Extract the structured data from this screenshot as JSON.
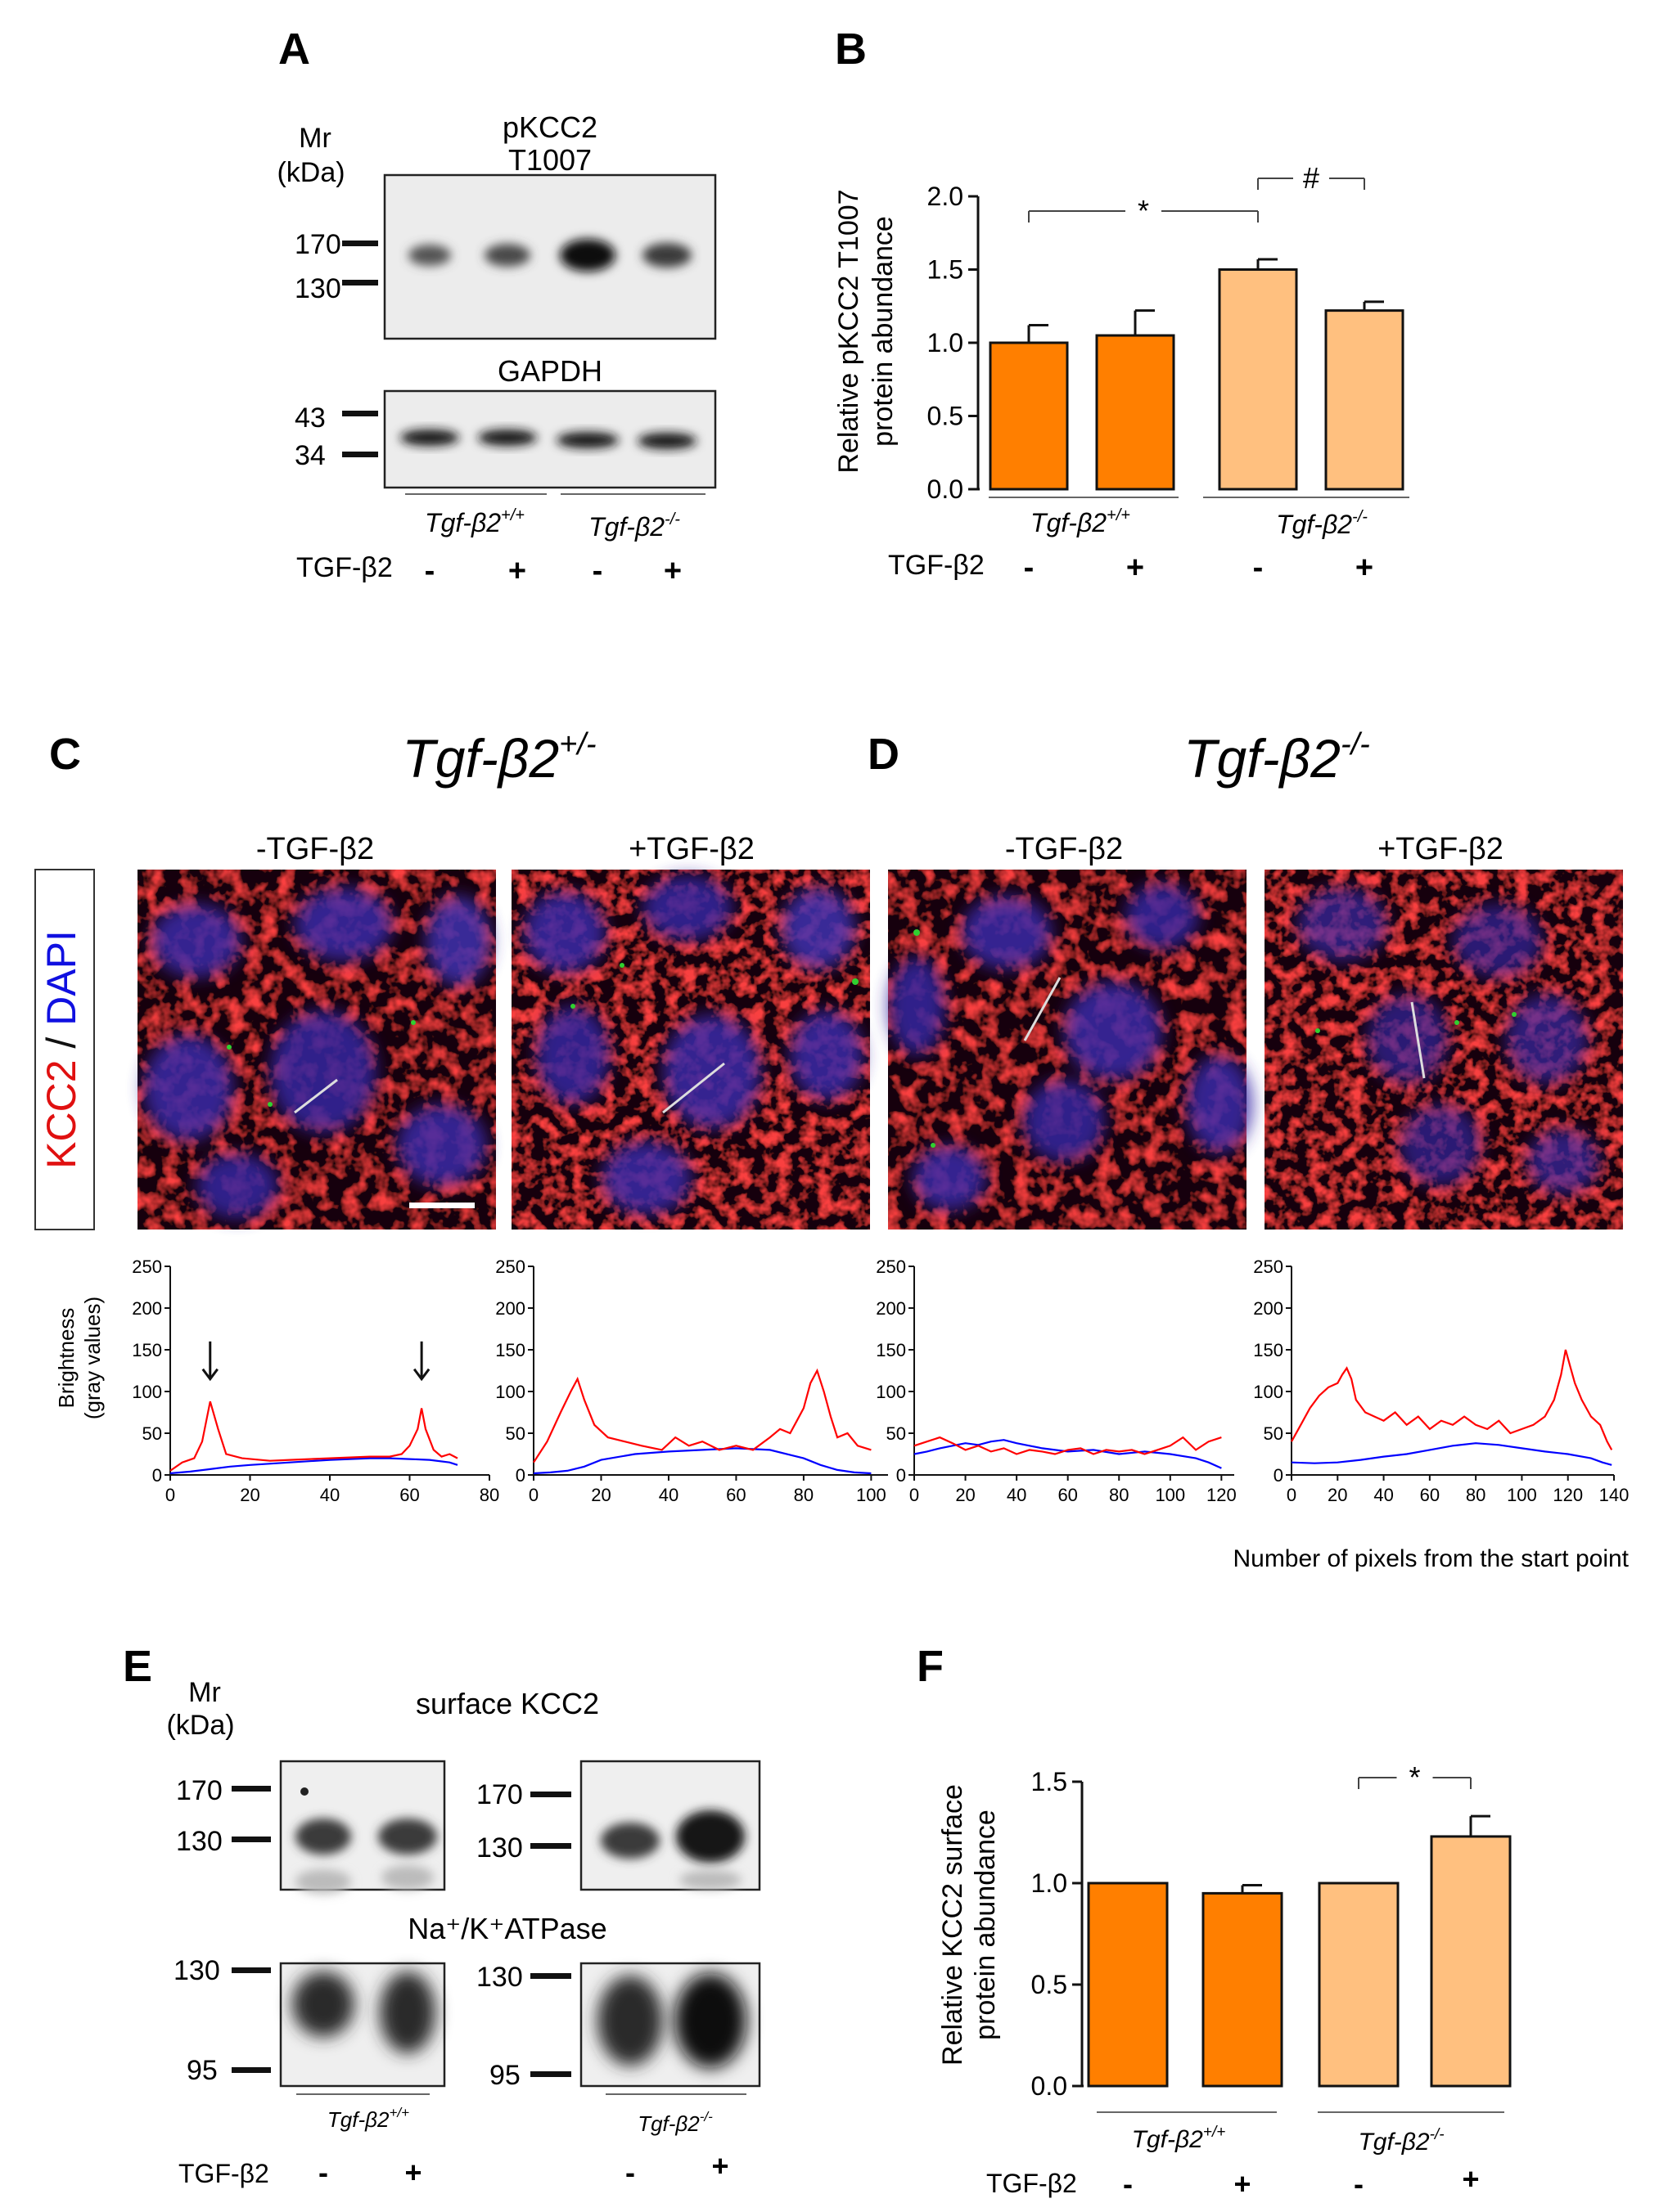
{
  "figure": {
    "panel_letters": {
      "A": "A",
      "B": "B",
      "C": "C",
      "D": "D",
      "E": "E",
      "F": "F"
    },
    "common": {
      "wt_group": "Tgf-β2",
      "wt_sup": "+/+",
      "ko_group": "Tgf-β2",
      "ko_sup": "-/-",
      "treatment_label": "TGF-β2",
      "minus": "-",
      "plus": "+"
    },
    "panel_a": {
      "mr_label": "Mr",
      "kda_label": "(kDa)",
      "blot1_title_l1": "pKCC2",
      "blot1_title_l2": "T1007",
      "blot1_markers": [
        "170",
        "130"
      ],
      "blot2_title": "GAPDH",
      "blot2_markers": [
        "43",
        "34"
      ]
    },
    "panel_c": {
      "genotype": "Tgf-β2",
      "sup": "+/-",
      "col1": "-TGF-β2",
      "col2": "+TGF-β2"
    },
    "panel_d": {
      "genotype": "Tgf-β2",
      "sup": "-/-",
      "col1": "-TGF-β2",
      "col2": "+TGF-β2"
    },
    "stain_label": {
      "kcc2": "KCC2",
      "slash": " / ",
      "dapi": "DAPI"
    },
    "profile_axis": {
      "ylabel_l1": "Brightness",
      "ylabel_l2": "(gray values)",
      "xlabel": "Number of pixels from the start point"
    },
    "panel_e": {
      "mr_label": "Mr",
      "kda_label": "(kDa)",
      "blot1_title": "surface KCC2",
      "blot1_markers": [
        "170",
        "130"
      ],
      "blot2_title": "Na⁺/K⁺ATPase",
      "blot2_markers": [
        "130",
        "95"
      ]
    },
    "colors": {
      "dark_orange": "#ff7f00",
      "light_orange": "#ffc07f",
      "red_channel": "#ff0000",
      "blue_channel": "#0000ff"
    }
  },
  "chart_data": [
    {
      "id": "B",
      "type": "bar",
      "ylabel": "Relative pKCC2 T1007 protein abundance",
      "ylabel_l1": "Relative pKCC2 T1007",
      "ylabel_l2": "protein abundance",
      "ylim": [
        0,
        2.0
      ],
      "yticks": [
        "0.0",
        "0.5",
        "1.0",
        "1.5",
        "2.0"
      ],
      "categories": [
        "Tgf-β2+/+ -",
        "Tgf-β2+/+ +",
        "Tgf-β2-/- -",
        "Tgf-β2-/- +"
      ],
      "values": [
        1.0,
        1.05,
        1.5,
        1.22
      ],
      "errors": [
        0.12,
        0.17,
        0.07,
        0.06
      ],
      "significance": [
        {
          "from": 0,
          "to": 2,
          "label": "*"
        },
        {
          "from": 2,
          "to": 3,
          "label": "#"
        }
      ]
    },
    {
      "id": "C1",
      "type": "line",
      "xlim": [
        0,
        80
      ],
      "xticks": [
        "0",
        "20",
        "40",
        "60",
        "80"
      ],
      "ylim": [
        0,
        250
      ],
      "yticks": [
        "0",
        "50",
        "100",
        "150",
        "200",
        "250"
      ],
      "arrows_at": [
        10,
        63
      ],
      "series": [
        {
          "name": "KCC2",
          "color": "#ff0000",
          "x": [
            0,
            3,
            6,
            8,
            10,
            12,
            14,
            18,
            25,
            30,
            40,
            50,
            55,
            58,
            60,
            62,
            63,
            64,
            66,
            68,
            70,
            72
          ],
          "y": [
            5,
            15,
            20,
            40,
            88,
            55,
            25,
            20,
            17,
            18,
            20,
            22,
            22,
            25,
            35,
            55,
            80,
            55,
            30,
            22,
            25,
            20
          ]
        },
        {
          "name": "DAPI",
          "color": "#0000ff",
          "x": [
            0,
            5,
            10,
            15,
            20,
            30,
            40,
            50,
            55,
            60,
            65,
            70,
            72
          ],
          "y": [
            2,
            4,
            7,
            10,
            12,
            15,
            18,
            20,
            20,
            19,
            18,
            15,
            12
          ]
        }
      ]
    },
    {
      "id": "C2",
      "type": "line",
      "xlim": [
        0,
        105
      ],
      "xticks": [
        "0",
        "20",
        "40",
        "60",
        "80",
        "100"
      ],
      "ylim": [
        0,
        250
      ],
      "yticks": [
        "0",
        "50",
        "100",
        "150",
        "200",
        "250"
      ],
      "series": [
        {
          "name": "KCC2",
          "color": "#ff0000",
          "x": [
            0,
            4,
            8,
            11,
            13,
            15,
            18,
            22,
            27,
            32,
            38,
            42,
            46,
            50,
            55,
            60,
            65,
            70,
            73,
            76,
            78,
            80,
            82,
            84,
            86,
            88,
            90,
            93,
            96,
            100
          ],
          "y": [
            15,
            40,
            75,
            100,
            115,
            90,
            60,
            45,
            40,
            35,
            30,
            45,
            35,
            40,
            30,
            35,
            30,
            45,
            55,
            50,
            65,
            80,
            110,
            125,
            100,
            70,
            45,
            50,
            35,
            30
          ]
        },
        {
          "name": "DAPI",
          "color": "#0000ff",
          "x": [
            0,
            5,
            10,
            15,
            20,
            30,
            40,
            50,
            60,
            70,
            80,
            85,
            90,
            95,
            100
          ],
          "y": [
            2,
            3,
            5,
            10,
            18,
            25,
            28,
            30,
            32,
            30,
            20,
            12,
            6,
            3,
            2
          ]
        }
      ]
    },
    {
      "id": "D1",
      "type": "line",
      "xlim": [
        0,
        125
      ],
      "xticks": [
        "0",
        "20",
        "40",
        "60",
        "80",
        "100",
        "120"
      ],
      "ylim": [
        0,
        250
      ],
      "yticks": [
        "0",
        "50",
        "100",
        "150",
        "200",
        "250"
      ],
      "series": [
        {
          "name": "KCC2",
          "color": "#ff0000",
          "x": [
            0,
            5,
            10,
            15,
            20,
            25,
            30,
            35,
            40,
            45,
            50,
            55,
            60,
            65,
            70,
            75,
            80,
            85,
            90,
            95,
            100,
            105,
            110,
            115,
            120
          ],
          "y": [
            35,
            40,
            45,
            38,
            30,
            35,
            28,
            32,
            25,
            30,
            28,
            25,
            30,
            32,
            25,
            30,
            28,
            30,
            25,
            30,
            35,
            45,
            30,
            40,
            45
          ]
        },
        {
          "name": "DAPI",
          "color": "#0000ff",
          "x": [
            0,
            5,
            10,
            15,
            20,
            25,
            30,
            35,
            40,
            45,
            50,
            60,
            70,
            80,
            90,
            100,
            110,
            115,
            120
          ],
          "y": [
            25,
            28,
            32,
            35,
            38,
            36,
            40,
            42,
            38,
            35,
            32,
            28,
            30,
            25,
            28,
            25,
            20,
            15,
            8
          ]
        }
      ]
    },
    {
      "id": "D2",
      "type": "line",
      "xlim": [
        0,
        140
      ],
      "xticks": [
        "0",
        "20",
        "40",
        "60",
        "80",
        "100",
        "120",
        "140"
      ],
      "ylim": [
        0,
        250
      ],
      "yticks": [
        "0",
        "50",
        "100",
        "150",
        "200",
        "250"
      ],
      "series": [
        {
          "name": "KCC2",
          "color": "#ff0000",
          "x": [
            0,
            4,
            8,
            12,
            16,
            20,
            22,
            24,
            26,
            28,
            32,
            36,
            40,
            45,
            50,
            55,
            60,
            65,
            70,
            75,
            80,
            85,
            90,
            95,
            100,
            105,
            110,
            114,
            117,
            119,
            121,
            123,
            126,
            130,
            134,
            137,
            139
          ],
          "y": [
            40,
            60,
            80,
            95,
            105,
            110,
            120,
            128,
            115,
            90,
            75,
            70,
            65,
            75,
            60,
            70,
            55,
            65,
            60,
            70,
            60,
            55,
            65,
            50,
            55,
            60,
            70,
            90,
            120,
            150,
            130,
            110,
            90,
            70,
            60,
            40,
            30
          ]
        },
        {
          "name": "DAPI",
          "color": "#0000ff",
          "x": [
            0,
            10,
            20,
            30,
            40,
            50,
            60,
            70,
            80,
            90,
            100,
            110,
            120,
            130,
            135,
            139
          ],
          "y": [
            15,
            14,
            15,
            18,
            22,
            25,
            30,
            35,
            38,
            36,
            32,
            28,
            25,
            20,
            15,
            12
          ]
        }
      ]
    },
    {
      "id": "F",
      "type": "bar",
      "ylabel": "Relative KCC2 surface protein abundance",
      "ylabel_l1": "Relative KCC2 surface",
      "ylabel_l2": "protein abundance",
      "ylim": [
        0,
        1.5
      ],
      "yticks": [
        "0.0",
        "0.5",
        "1.0",
        "1.5"
      ],
      "categories": [
        "Tgf-β2+/+ -",
        "Tgf-β2+/+ +",
        "Tgf-β2-/- -",
        "Tgf-β2-/- +"
      ],
      "values": [
        1.0,
        0.95,
        1.0,
        1.23
      ],
      "errors": [
        0.0,
        0.04,
        0.0,
        0.1
      ],
      "significance": [
        {
          "from": 2,
          "to": 3,
          "label": "*"
        }
      ]
    }
  ]
}
